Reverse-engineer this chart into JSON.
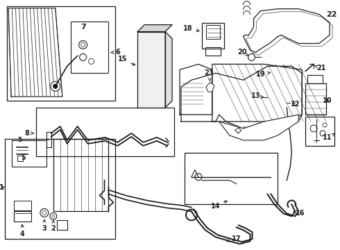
{
  "bg_color": "#ffffff",
  "line_color": "#1a1a1a",
  "label_fontsize": 7.0,
  "fig_w": 4.9,
  "fig_h": 3.6,
  "dpi": 100
}
